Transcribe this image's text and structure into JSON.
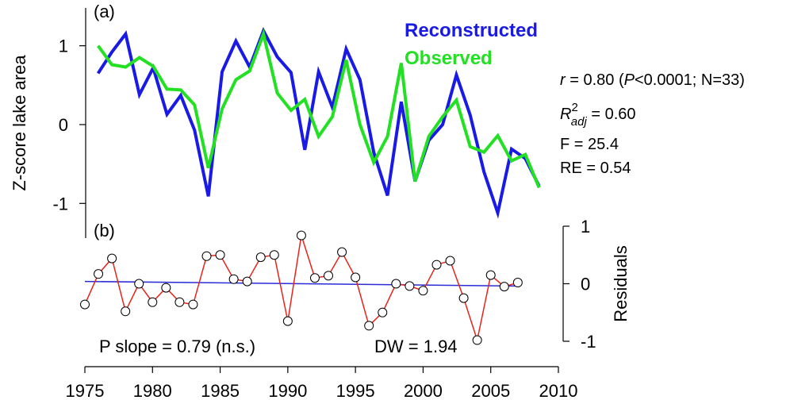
{
  "chart_data": [
    {
      "type": "line",
      "label": "(a)",
      "y_label": "Z-score lake area",
      "x": [
        1975,
        1976,
        1977,
        1978,
        1979,
        1980,
        1981,
        1982,
        1983,
        1984,
        1985,
        1986,
        1987,
        1988,
        1989,
        1990,
        1991,
        1992,
        1993,
        1994,
        1995,
        1996,
        1997,
        1998,
        1999,
        2000,
        2001,
        2002,
        2003,
        2004,
        2005,
        2006,
        2007
      ],
      "xlim": [
        1974.1,
        2008.4
      ],
      "ylim": [
        -1.44,
        1.48
      ],
      "yticks": [
        -1,
        0,
        1
      ],
      "series": [
        {
          "name": "Reconstructed",
          "color": "#1a1ae6",
          "values": [
            0.65,
            0.92,
            1.15,
            0.38,
            0.72,
            0.13,
            0.37,
            -0.07,
            -0.91,
            0.67,
            1.06,
            0.73,
            1.19,
            0.86,
            0.66,
            -0.32,
            0.67,
            0.22,
            0.96,
            0.57,
            -0.35,
            -0.9,
            0.29,
            -0.72,
            -0.2,
            0.0,
            0.63,
            0.12,
            -0.6,
            -1.12,
            -0.31,
            -0.43,
            -0.78
          ]
        },
        {
          "name": "Observed",
          "color": "#22e022",
          "values": [
            1.0,
            0.76,
            0.73,
            0.85,
            0.74,
            0.45,
            0.44,
            0.25,
            -0.55,
            0.2,
            0.57,
            0.68,
            1.15,
            0.4,
            0.18,
            0.32,
            -0.15,
            0.1,
            0.82,
            0.0,
            -0.48,
            -0.15,
            0.78,
            -0.72,
            -0.15,
            0.1,
            0.31,
            -0.28,
            -0.35,
            -0.14,
            -0.46,
            -0.38,
            -0.8
          ]
        }
      ],
      "stats": [
        [
          "r",
          " = 0.80 (",
          "P",
          "<0.0001; N=33)"
        ],
        [
          "R",
          "2",
          "adj",
          " = 0.60"
        ],
        [
          "F = 25.4"
        ],
        [
          "RE = 0.54"
        ]
      ]
    },
    {
      "type": "line",
      "label": "(b)",
      "y_label": "Residuals",
      "x": [
        1975,
        1976,
        1977,
        1978,
        1979,
        1980,
        1981,
        1982,
        1983,
        1984,
        1985,
        1986,
        1987,
        1988,
        1989,
        1990,
        1991,
        1992,
        1993,
        1994,
        1995,
        1996,
        1997,
        1998,
        1999,
        2000,
        2001,
        2002,
        2003,
        2004,
        2005,
        2006,
        2007
      ],
      "xlim": [
        1975,
        2010
      ],
      "xticks": [
        1975,
        1980,
        1985,
        1990,
        1995,
        2000,
        2005,
        2010
      ],
      "ylim": [
        -1,
        1
      ],
      "yticks": [
        -1,
        0,
        1
      ],
      "series": [
        {
          "color": "#e8231b",
          "markers": true,
          "values": [
            -0.36,
            0.17,
            0.44,
            -0.48,
            0.0,
            -0.32,
            -0.07,
            -0.32,
            -0.36,
            0.48,
            0.5,
            0.08,
            0.04,
            0.46,
            0.5,
            -0.65,
            0.84,
            0.1,
            0.14,
            0.55,
            0.11,
            -0.73,
            -0.5,
            0.0,
            -0.04,
            -0.12,
            0.33,
            0.4,
            -0.25,
            -0.98,
            0.15,
            -0.05,
            0.02
          ]
        }
      ],
      "trend": {
        "x": [
          1975,
          2007
        ],
        "values": [
          0.04,
          -0.04
        ],
        "color": "#2b2bd9"
      },
      "annotations": [
        "P slope = 0.79 (n.s.)",
        "DW = 1.94"
      ]
    }
  ]
}
